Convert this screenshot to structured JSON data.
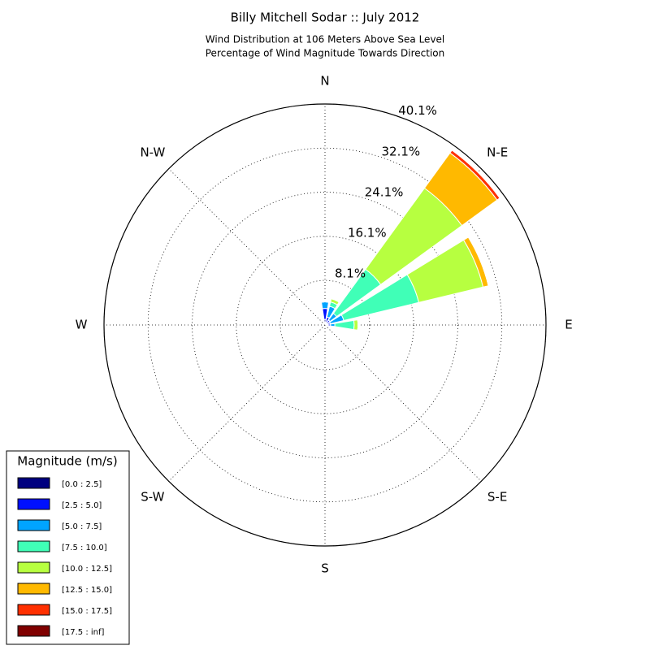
{
  "chart_data": {
    "type": "windrose",
    "title": "Billy Mitchell Sodar :: July 2012",
    "subtitle": [
      "Wind Distribution at 106 Meters Above Sea Level",
      "Percentage of Wind Magnitude Towards Direction"
    ],
    "categories": [
      "N",
      null,
      "N-E",
      null,
      "E",
      null,
      "S-E",
      null,
      "S",
      null,
      "S-W",
      null,
      "W",
      null,
      "N-W",
      null
    ],
    "ylim": [
      0,
      40.1
    ],
    "yticks": [
      {
        "value": 8.1,
        "label": "8.1%"
      },
      {
        "value": 16.1,
        "label": "16.1%"
      },
      {
        "value": 24.1,
        "label": "24.1%"
      },
      {
        "value": 32.1,
        "label": "32.1%"
      },
      {
        "value": 40.1,
        "label": "40.1%"
      }
    ],
    "grid": true,
    "legend_title": "Magnitude (m/s)",
    "legend_position": "lower left",
    "series": [
      {
        "name": "[0.0 : 2.5]",
        "color": "#000080",
        "values": [
          1.0,
          0.5,
          0.3,
          0.3,
          0.4,
          0,
          0,
          0,
          0,
          0,
          0,
          0,
          0,
          0,
          0,
          0
        ]
      },
      {
        "name": "[2.5 : 5.0]",
        "color": "#0010ff",
        "values": [
          2.0,
          1.0,
          0.8,
          0.7,
          0.6,
          0,
          0,
          0,
          0,
          0,
          0,
          0,
          0,
          0,
          0,
          0
        ]
      },
      {
        "name": "[5.0 : 7.5]",
        "color": "#00a4ff",
        "values": [
          1.2,
          2.0,
          1.5,
          2.5,
          0.8,
          0,
          0,
          0,
          0,
          0,
          0,
          0,
          0,
          0,
          0,
          0
        ]
      },
      {
        "name": "[7.5 : 10.0]",
        "color": "#40ffb7",
        "values": [
          0,
          0.8,
          9.9,
          14.0,
          3.5,
          0,
          0,
          0,
          0,
          0,
          0,
          0,
          0,
          0,
          0,
          0
        ]
      },
      {
        "name": "[10.0 : 12.5]",
        "color": "#b7ff40",
        "values": [
          0,
          0.6,
          18.2,
          12.0,
          0.7,
          0,
          0,
          0,
          0,
          0,
          0,
          0,
          0,
          0,
          0,
          0
        ]
      },
      {
        "name": "[12.5 : 15.0]",
        "color": "#ffb900",
        "values": [
          0,
          0,
          7.9,
          1.0,
          0,
          0,
          0,
          0,
          0,
          0,
          0,
          0,
          0,
          0,
          0,
          0
        ]
      },
      {
        "name": "[15.0 : 17.5]",
        "color": "#ff3000",
        "values": [
          0,
          0,
          0.6,
          0,
          0,
          0,
          0,
          0,
          0,
          0,
          0,
          0,
          0,
          0,
          0,
          0
        ]
      },
      {
        "name": "[17.5 : inf]",
        "color": "#800000",
        "values": [
          0,
          0,
          0,
          0,
          0,
          0,
          0,
          0,
          0,
          0,
          0,
          0,
          0,
          0,
          0,
          0
        ]
      }
    ]
  }
}
